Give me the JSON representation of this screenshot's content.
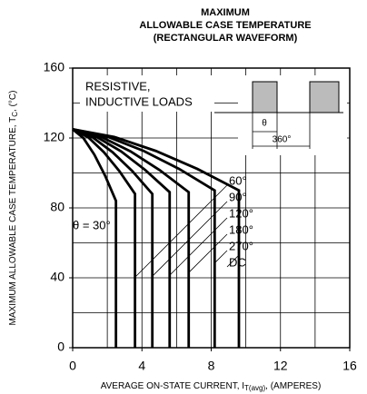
{
  "chart_data": {
    "type": "line",
    "title": [
      "MAXIMUM",
      "ALLOWABLE CASE TEMPERATURE",
      "(RECTANGULAR WAVEFORM)"
    ],
    "x_label": [
      "AVERAGE ON-STATE CURRENT, I",
      "T(avg)",
      ", (AMPERES)"
    ],
    "y_label": [
      "MAXIMUM ALLOWABLE CASE TEMPERATURE, T",
      "C",
      ", (°C)"
    ],
    "annotations": [
      "RESISTIVE,",
      "INDUCTIVE LOADS",
      "θ",
      "360°"
    ],
    "xlim": [
      0,
      16
    ],
    "ylim": [
      0,
      160
    ],
    "xticks": [
      0,
      4,
      8,
      12,
      16
    ],
    "yticks": [
      0,
      40,
      80,
      120,
      160
    ],
    "xgrid": [
      2,
      4,
      6,
      8,
      10,
      12,
      14
    ],
    "ygrid": [
      20,
      40,
      60,
      80,
      100,
      120,
      140
    ],
    "color": "#000000",
    "series": [
      {
        "name": "θ = 30°",
        "x": [
          0,
          0.625,
          1.25,
          1.875,
          2.5,
          2.5
        ],
        "values": [
          125,
          119.9,
          110.5,
          98.4,
          84,
          0
        ]
      },
      {
        "name": "60°",
        "x": [
          0,
          0.9,
          1.8,
          2.7,
          3.6,
          3.6
        ],
        "values": [
          125,
          120.4,
          111.9,
          101,
          88,
          0
        ]
      },
      {
        "name": "90°",
        "x": [
          0,
          1.15,
          2.3,
          3.45,
          4.6,
          4.6
        ],
        "values": [
          125,
          120.4,
          111.9,
          101,
          88,
          0
        ]
      },
      {
        "name": "120°",
        "x": [
          0,
          1.4,
          2.8,
          4.2,
          5.6,
          5.6
        ],
        "values": [
          125,
          120.5,
          112.3,
          101.6,
          89,
          0
        ]
      },
      {
        "name": "180°",
        "x": [
          0,
          1.675,
          3.35,
          5.025,
          6.7,
          6.7
        ],
        "values": [
          125,
          120.5,
          112.3,
          101.6,
          89,
          0
        ]
      },
      {
        "name": "270°",
        "x": [
          0,
          2.05,
          4.1,
          6.15,
          8.2,
          8.2
        ],
        "values": [
          125,
          120.6,
          112.6,
          102.3,
          90,
          0
        ]
      },
      {
        "name": "DC",
        "x": [
          0,
          2.4,
          4.8,
          7.2,
          9.6,
          9.6
        ],
        "values": [
          125,
          120.6,
          112.6,
          102.3,
          90,
          0
        ]
      }
    ]
  }
}
